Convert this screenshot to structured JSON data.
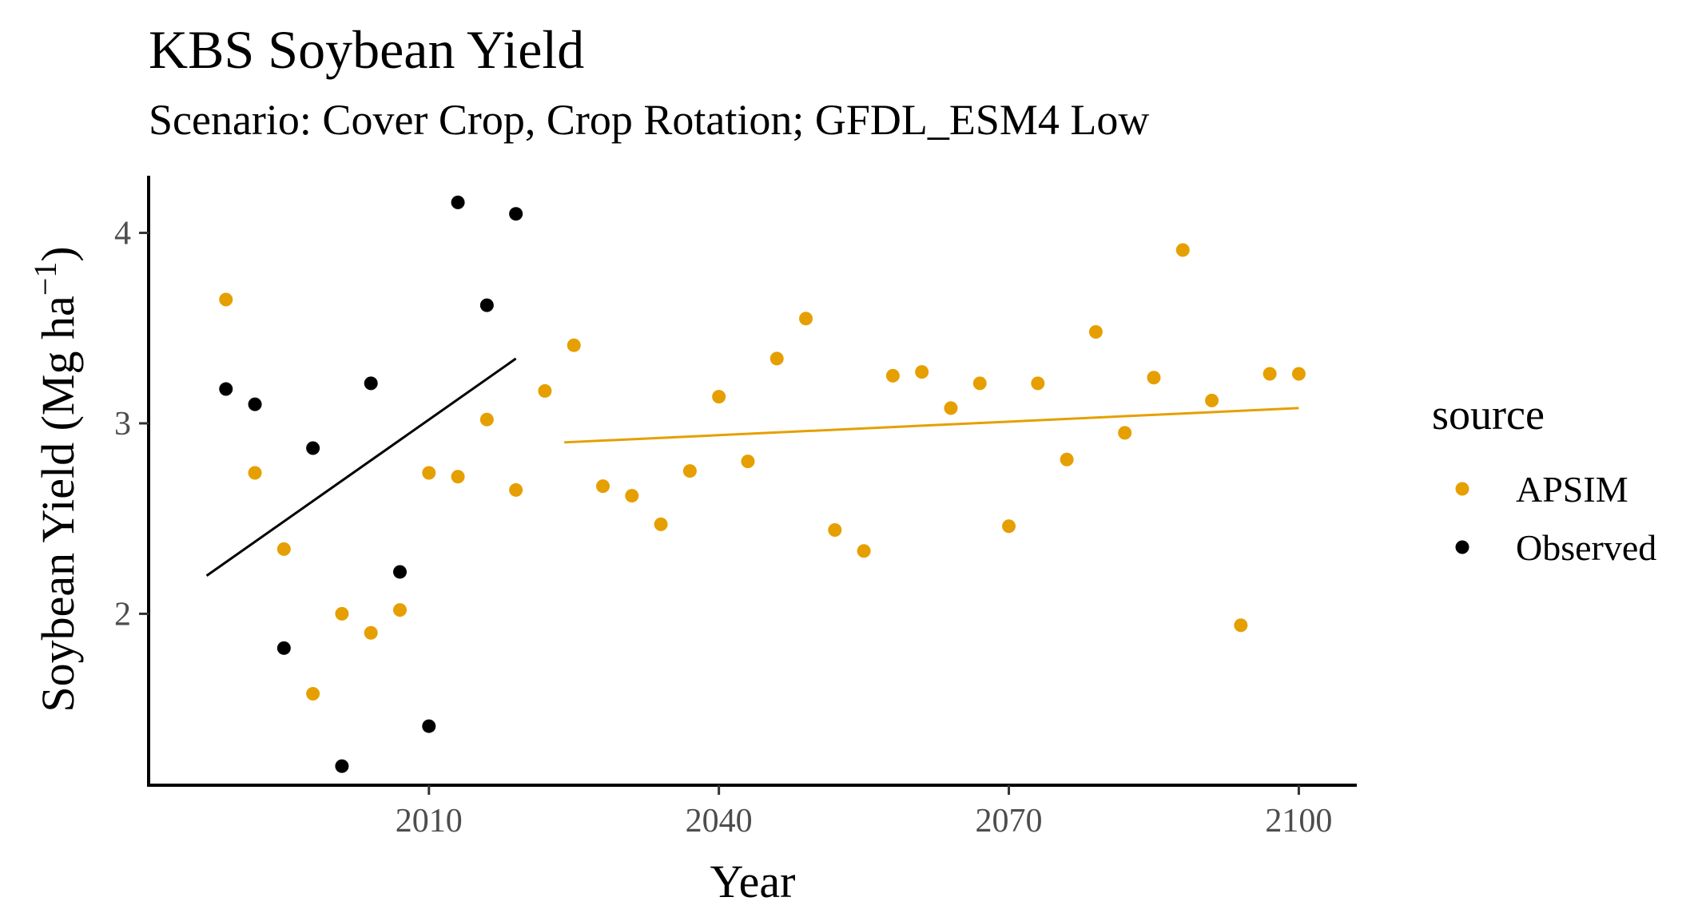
{
  "chart_data": {
    "type": "scatter",
    "title": "KBS Soybean Yield",
    "subtitle": "Scenario: Cover Crop, Crop Rotation; GFDL_ESM4 Low",
    "xlabel": "Year",
    "ylabel": "Soybean Yield (Mg ha",
    "ylabel_sup": "−1",
    "ylabel_close": ")",
    "xlim": [
      1981,
      2106
    ],
    "ylim": [
      1.1,
      4.3
    ],
    "xticks": [
      2010,
      2040,
      2070,
      2100
    ],
    "yticks": [
      2,
      3,
      4
    ],
    "grid": false,
    "legend": {
      "title": "source",
      "position": "right"
    },
    "series": [
      {
        "name": "APSIM",
        "color": "#E69F00",
        "x": [
          1989,
          1992,
          1995,
          1998,
          2001,
          2004,
          2007,
          2010,
          2013,
          2016,
          2019,
          2022,
          2025,
          2028,
          2031,
          2034,
          2037,
          2040,
          2043,
          2046,
          2049,
          2052,
          2055,
          2058,
          2061,
          2064,
          2067,
          2070,
          2073,
          2076,
          2079,
          2082,
          2085,
          2088,
          2091,
          2094,
          2097,
          2100
        ],
        "y": [
          3.65,
          2.74,
          2.34,
          1.58,
          2.0,
          1.9,
          2.02,
          2.74,
          2.72,
          3.02,
          2.65,
          3.17,
          3.41,
          2.67,
          2.62,
          2.47,
          2.75,
          3.14,
          2.8,
          3.34,
          3.55,
          2.44,
          2.33,
          3.25,
          3.27,
          3.08,
          3.21,
          2.46,
          3.21,
          2.81,
          3.48,
          2.95,
          3.24,
          3.91,
          3.12,
          1.94,
          3.26,
          3.26
        ],
        "trend": {
          "x": [
            2024,
            2100
          ],
          "y": [
            2.9,
            3.08
          ]
        }
      },
      {
        "name": "Observed",
        "color": "#000000",
        "x": [
          1989,
          1992,
          1995,
          1998,
          2001,
          2004,
          2007,
          2010,
          2013,
          2016,
          2019
        ],
        "y": [
          3.18,
          3.1,
          1.82,
          2.87,
          1.2,
          3.21,
          2.22,
          1.41,
          4.16,
          3.62,
          4.1
        ],
        "trend": {
          "x": [
            1987,
            2019
          ],
          "y": [
            2.2,
            3.34
          ]
        }
      }
    ]
  }
}
